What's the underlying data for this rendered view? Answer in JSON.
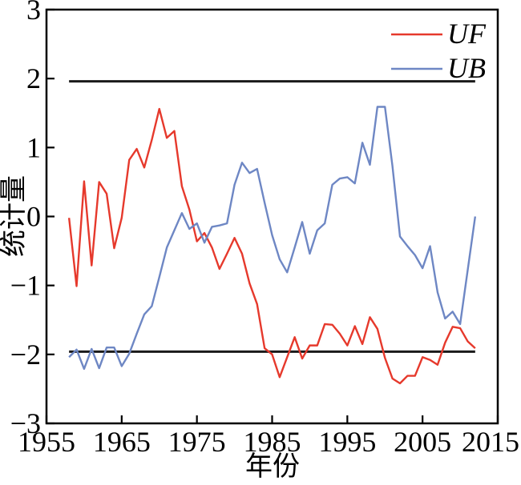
{
  "figure": {
    "background": "#ffffff",
    "border_color": "#000000"
  },
  "chart_data": {
    "type": "line",
    "title": "",
    "xlabel": "年份",
    "ylabel": "统计量",
    "xlim": [
      1955,
      2015
    ],
    "ylim": [
      -3,
      3
    ],
    "grid": false,
    "legend_position": "top-right",
    "xticks": {
      "values": [
        1955,
        1965,
        1975,
        1985,
        1995,
        2005,
        2015
      ],
      "labels": [
        "1955",
        "1965",
        "1975",
        "1985",
        "1995",
        "2005",
        "2015"
      ]
    },
    "yticks": {
      "values": [
        3,
        2,
        1,
        0,
        -1,
        -2,
        -3
      ],
      "labels": [
        "3",
        "2",
        "1",
        "0",
        "−1",
        "−2",
        "−3"
      ]
    },
    "x": [
      1958,
      1959,
      1960,
      1961,
      1962,
      1963,
      1964,
      1965,
      1966,
      1967,
      1968,
      1969,
      1970,
      1971,
      1972,
      1973,
      1974,
      1975,
      1976,
      1977,
      1978,
      1979,
      1980,
      1981,
      1982,
      1983,
      1984,
      1985,
      1986,
      1987,
      1988,
      1989,
      1990,
      1991,
      1992,
      1993,
      1994,
      1995,
      1996,
      1997,
      1998,
      1999,
      2000,
      2001,
      2002,
      2003,
      2004,
      2005,
      2006,
      2007,
      2008,
      2009,
      2010,
      2011,
      2012
    ],
    "series": [
      {
        "name": "UF",
        "color": "#e6392c",
        "values": [
          -0.02,
          -1.01,
          0.51,
          -0.71,
          0.5,
          0.33,
          -0.46,
          -0.02,
          0.82,
          0.98,
          0.71,
          1.11,
          1.56,
          1.14,
          1.24,
          0.44,
          0.1,
          -0.36,
          -0.24,
          -0.45,
          -0.76,
          -0.54,
          -0.31,
          -0.54,
          -0.97,
          -1.27,
          -1.91,
          -2.0,
          -2.33,
          -2.04,
          -1.75,
          -2.06,
          -1.87,
          -1.87,
          -1.56,
          -1.57,
          -1.7,
          -1.87,
          -1.59,
          -1.85,
          -1.46,
          -1.63,
          -2.05,
          -2.35,
          -2.42,
          -2.31,
          -2.31,
          -2.04,
          -2.08,
          -2.15,
          -1.83,
          -1.6,
          -1.62,
          -1.81,
          -1.91
        ]
      },
      {
        "name": "UB",
        "color": "#6e87c4",
        "values": [
          -2.04,
          -1.93,
          -2.21,
          -1.92,
          -2.2,
          -1.9,
          -1.9,
          -2.17,
          -1.99,
          -1.7,
          -1.42,
          -1.3,
          -0.88,
          -0.45,
          -0.2,
          0.05,
          -0.18,
          -0.1,
          -0.38,
          -0.15,
          -0.13,
          -0.1,
          0.46,
          0.78,
          0.63,
          0.69,
          0.2,
          -0.27,
          -0.62,
          -0.81,
          -0.45,
          -0.08,
          -0.54,
          -0.2,
          -0.1,
          0.46,
          0.55,
          0.57,
          0.48,
          1.07,
          0.75,
          1.59,
          1.59,
          0.73,
          -0.29,
          -0.43,
          -0.56,
          -0.75,
          -0.43,
          -1.1,
          -1.48,
          -1.38,
          -1.56,
          -0.78,
          0.0
        ]
      }
    ],
    "critical_lines": {
      "values": [
        1.96,
        -1.96
      ],
      "x_range": [
        1958,
        2012
      ],
      "color": "#1a1a1a"
    },
    "legend": {
      "entries": [
        {
          "label": "UF",
          "color": "#e6392c"
        },
        {
          "label": "UB",
          "color": "#6e87c4"
        }
      ]
    }
  }
}
